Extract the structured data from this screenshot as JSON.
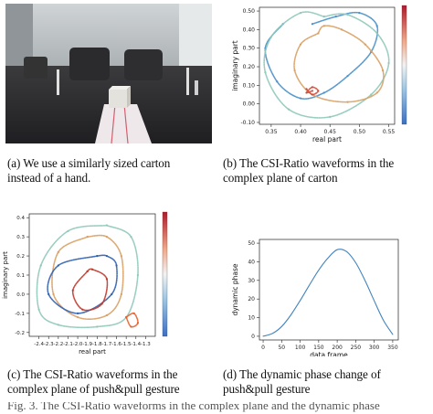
{
  "captions": {
    "a": [
      "(a) We use a similarly sized carton",
      "instead of a hand."
    ],
    "b": [
      "(b) The CSI-Ratio waveforms in the",
      "complex plane of carton"
    ],
    "c": [
      "(c) The CSI-Ratio waveforms in the",
      "complex plane of push&pull gesture"
    ],
    "d": [
      "(d) The dynamic phase change of",
      "push&pull gesture"
    ]
  },
  "bottom_text": "Fig. 3. The CSI-Ratio waveforms in the complex plane and the dynamic phase",
  "chart_data": [
    {
      "id": "b",
      "type": "line",
      "xlabel": "real part",
      "ylabel": "imaginary part",
      "xlim": [
        0.33,
        0.56
      ],
      "ylim": [
        -0.11,
        0.52
      ],
      "xticks": [
        "0.35",
        "0.40",
        "0.45",
        "0.50",
        "0.55"
      ],
      "yticks": [
        "-0.10",
        "0.00",
        "0.10",
        "0.20",
        "0.30",
        "0.40",
        "0.50"
      ],
      "colorbar": true,
      "series": [
        {
          "color": "#4a90c8",
          "x": [
            0.37,
            0.34,
            0.36,
            0.4,
            0.44,
            0.48,
            0.52,
            0.53,
            0.5,
            0.46,
            0.42
          ],
          "y": [
            0.43,
            0.3,
            0.12,
            0.03,
            0.06,
            0.15,
            0.28,
            0.42,
            0.49,
            0.47,
            0.43
          ]
        },
        {
          "color": "#8fc9b9",
          "x": [
            0.44,
            0.4,
            0.35,
            0.34,
            0.38,
            0.45,
            0.52,
            0.55,
            0.53,
            0.48,
            0.44
          ],
          "y": [
            0.47,
            0.49,
            0.36,
            0.17,
            -0.03,
            -0.07,
            0.05,
            0.22,
            0.38,
            0.48,
            0.47
          ]
        },
        {
          "color": "#d9a065",
          "x": [
            0.43,
            0.4,
            0.39,
            0.42,
            0.48,
            0.53,
            0.54,
            0.51,
            0.47,
            0.44,
            0.43
          ],
          "y": [
            0.38,
            0.32,
            0.18,
            0.05,
            0.01,
            0.06,
            0.18,
            0.32,
            0.4,
            0.42,
            0.38
          ]
        },
        {
          "color": "#d64a3a",
          "x": [
            0.41,
            0.42,
            0.43,
            0.42,
            0.41,
            0.42
          ],
          "y": [
            0.08,
            0.05,
            0.07,
            0.09,
            0.06,
            0.07
          ]
        }
      ]
    },
    {
      "id": "c",
      "type": "line",
      "xlabel": "real part",
      "ylabel": "imaginary part",
      "xlim": [
        -2.5,
        -1.2
      ],
      "ylim": [
        -0.22,
        0.42
      ],
      "xticks": [
        "-2.4",
        "-2.3",
        "-2.2",
        "-2.1",
        "-2.0",
        "-1.9",
        "-1.8",
        "-1.7",
        "-1.6",
        "-1.5",
        "-1.4",
        "-1.3"
      ],
      "yticks": [
        "-0.2",
        "-0.1",
        "0.0",
        "0.1",
        "0.2",
        "0.3",
        "0.4"
      ],
      "colorbar": true,
      "series": [
        {
          "color": "#8fc9b9",
          "x": [
            -1.7,
            -2.1,
            -2.38,
            -2.4,
            -2.2,
            -1.8,
            -1.5,
            -1.38,
            -1.45,
            -1.7
          ],
          "y": [
            0.36,
            0.33,
            0.15,
            -0.08,
            -0.16,
            -0.17,
            -0.12,
            0.1,
            0.3,
            0.36
          ]
        },
        {
          "color": "#d9a065",
          "x": [
            -1.9,
            -2.2,
            -2.25,
            -2.0,
            -1.7,
            -1.55,
            -1.55,
            -1.7,
            -1.9
          ],
          "y": [
            0.3,
            0.22,
            0.0,
            -0.12,
            -0.11,
            0.0,
            0.2,
            0.3,
            0.3
          ]
        },
        {
          "color": "#3060b0",
          "x": [
            -1.8,
            -2.2,
            -2.3,
            -2.0,
            -1.65,
            -1.6,
            -1.7,
            -1.8
          ],
          "y": [
            0.2,
            0.15,
            0.0,
            -0.1,
            0.0,
            0.15,
            0.2,
            0.2
          ]
        },
        {
          "color": "#c0392b",
          "x": [
            -1.9,
            -2.05,
            -1.95,
            -1.75,
            -1.7,
            -1.85,
            -1.9
          ],
          "y": [
            0.12,
            0.02,
            -0.08,
            -0.05,
            0.08,
            0.13,
            0.12
          ]
        },
        {
          "color": "#e8622d",
          "x": [
            -1.5,
            -1.42,
            -1.38,
            -1.45,
            -1.5
          ],
          "y": [
            -0.12,
            -0.1,
            -0.15,
            -0.17,
            -0.12
          ]
        }
      ]
    },
    {
      "id": "d",
      "type": "line",
      "xlabel": "data frame",
      "ylabel": "dynamic phase",
      "xlim": [
        -10,
        365
      ],
      "ylim": [
        -2,
        52
      ],
      "xticks": [
        "0",
        "50",
        "100",
        "150",
        "200",
        "250",
        "300",
        "350"
      ],
      "yticks": [
        "0",
        "10",
        "20",
        "30",
        "40",
        "50"
      ],
      "series": [
        {
          "color": "#2f77b4",
          "x": [
            0,
            25,
            50,
            75,
            100,
            125,
            150,
            175,
            200,
            225,
            250,
            275,
            300,
            325,
            350
          ],
          "y": [
            0,
            1.5,
            5.2,
            11.5,
            19.2,
            27.5,
            35.5,
            42.0,
            46.5,
            45.5,
            39.5,
            30.0,
            19.0,
            8.5,
            1.0
          ]
        }
      ]
    }
  ]
}
